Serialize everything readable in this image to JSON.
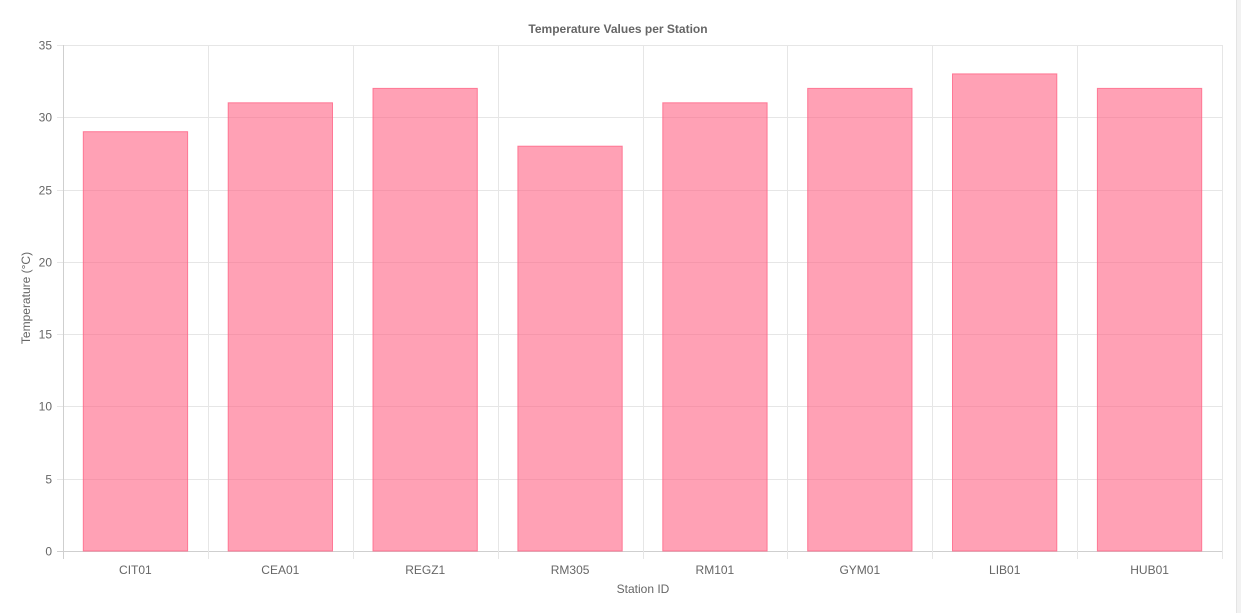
{
  "chart_data": {
    "type": "bar",
    "title": "Temperature Values per Station",
    "xlabel": "Station ID",
    "ylabel": "Temperature (°C)",
    "categories": [
      "CIT01",
      "CEA01",
      "REGZ1",
      "RM305",
      "RM101",
      "GYM01",
      "LIB01",
      "HUB01"
    ],
    "values": [
      29,
      31,
      32,
      28,
      31,
      32,
      33,
      32
    ],
    "ylim": [
      0,
      35
    ],
    "yticks": [
      0,
      5,
      10,
      15,
      20,
      25,
      30,
      35
    ],
    "grid": true,
    "legend": "none",
    "colors": {
      "bar_fill": "#ff6384",
      "bar_fill_opacity": 0.6,
      "bar_border": "#ff6384"
    }
  }
}
